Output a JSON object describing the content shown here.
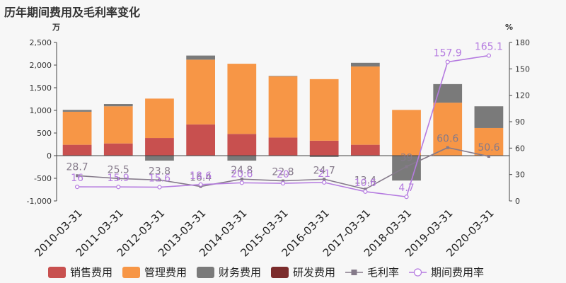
{
  "chart_data": {
    "type": "bar",
    "title": "历年期间费用及毛利率变化",
    "y_left_unit": "万",
    "y_right_unit": "%",
    "y_left_ticks": [
      "2,500",
      "2,000",
      "1,500",
      "1,000",
      "500",
      "0",
      "-500",
      "-1,000"
    ],
    "y_right_ticks": [
      "180",
      "150",
      "120",
      "90",
      "60",
      "30",
      "0"
    ],
    "ylim_left": [
      -1000,
      2500
    ],
    "ylim_right": [
      0,
      180
    ],
    "categories": [
      "2010-03-31",
      "2011-03-31",
      "2012-03-31",
      "2013-03-31",
      "2014-03-31",
      "2015-03-31",
      "2016-03-31",
      "2017-03-31",
      "2018-03-31",
      "2019-03-31",
      "2020-03-31"
    ],
    "stacked_series": [
      {
        "name": "销售费用",
        "color": "#c8504f",
        "values": [
          240,
          270,
          390,
          690,
          480,
          400,
          330,
          240,
          0,
          0,
          0
        ]
      },
      {
        "name": "管理费用",
        "color": "#f79646",
        "values": [
          730,
          820,
          870,
          1430,
          1550,
          1350,
          1360,
          1730,
          1010,
          1170,
          610
        ]
      },
      {
        "name": "财务费用",
        "color": "#7a7a7a",
        "values": [
          40,
          50,
          -110,
          90,
          -110,
          10,
          -30,
          80,
          -550,
          410,
          480
        ]
      },
      {
        "name": "研发费用",
        "color": "#7b2c2c",
        "values": [
          0,
          0,
          0,
          0,
          0,
          0,
          0,
          0,
          0,
          0,
          0
        ]
      }
    ],
    "line_series": [
      {
        "name": "毛利率",
        "color": "#857a8a",
        "marker": "square",
        "values": [
          28.7,
          25.5,
          23.8,
          16.4,
          24.8,
          22.8,
          24.7,
          13.4,
          39,
          60.6,
          50.6
        ],
        "labels": [
          "28.7",
          "25.5",
          "23.8",
          "16.4",
          "24.8",
          "22.8",
          "24.7",
          "13.4",
          "39",
          "60.6",
          "50.6"
        ]
      },
      {
        "name": "期间费用率",
        "color": "#b57be0",
        "marker": "circle",
        "values": [
          16,
          15.9,
          15.6,
          18.6,
          20.6,
          20,
          21,
          10.6,
          4.7,
          157.9,
          165.1
        ],
        "labels": [
          "16",
          "15.9",
          "15.6",
          "18.6",
          "20.6",
          "20",
          "21",
          "10.6",
          "4.7",
          "157.9",
          "165.1"
        ]
      }
    ]
  }
}
